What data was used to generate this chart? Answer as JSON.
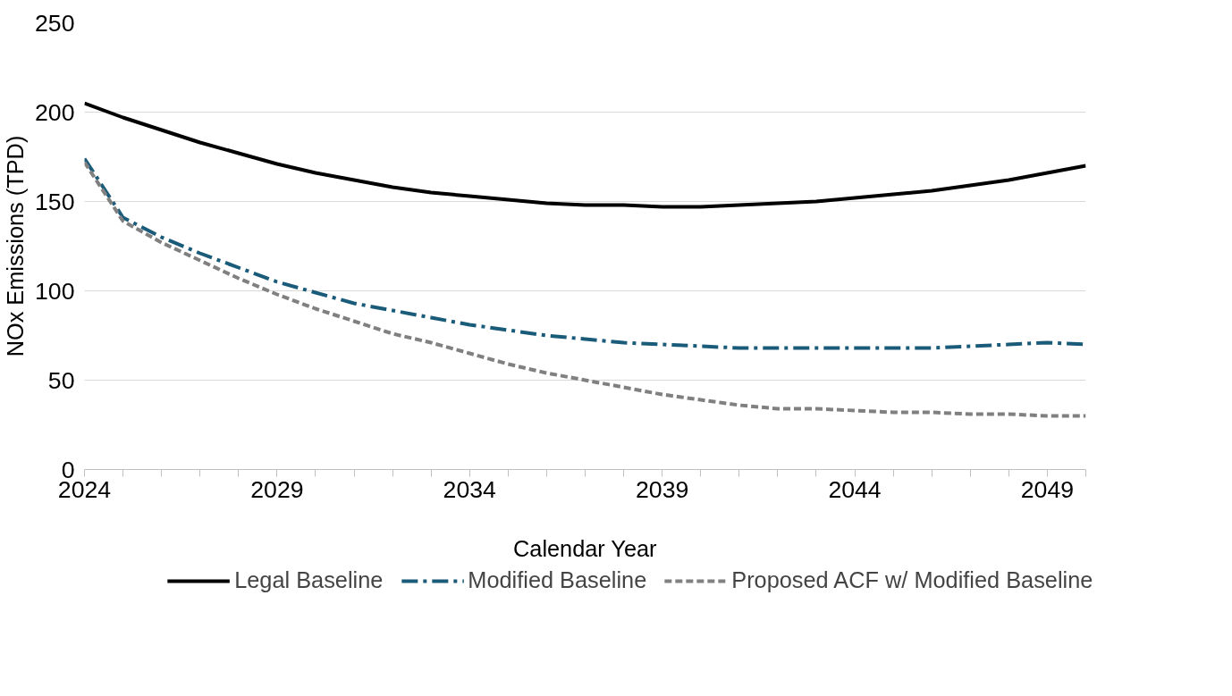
{
  "chart_data": {
    "type": "line",
    "xlabel": "Calendar Year",
    "ylabel": "NOx Emissions (TPD)",
    "x": [
      2024,
      2025,
      2026,
      2027,
      2028,
      2029,
      2030,
      2031,
      2032,
      2033,
      2034,
      2035,
      2036,
      2037,
      2038,
      2039,
      2040,
      2041,
      2042,
      2043,
      2044,
      2045,
      2046,
      2047,
      2048,
      2049,
      2050
    ],
    "series": [
      {
        "name": "Legal Baseline",
        "color": "#000000",
        "line_style": "solid",
        "values": [
          205,
          197,
          190,
          183,
          177,
          171,
          166,
          162,
          158,
          155,
          153,
          151,
          149,
          148,
          148,
          147,
          147,
          148,
          149,
          150,
          152,
          154,
          156,
          159,
          162,
          166,
          170
        ]
      },
      {
        "name": "Modified Baseline",
        "color": "#1a5b7a",
        "line_style": "dashdot",
        "values": [
          174,
          141,
          130,
          121,
          113,
          105,
          99,
          93,
          89,
          85,
          81,
          78,
          75,
          73,
          71,
          70,
          69,
          68,
          68,
          68,
          68,
          68,
          68,
          69,
          70,
          71,
          70
        ]
      },
      {
        "name": "Proposed ACF w/ Modified Baseline",
        "color": "#808080",
        "line_style": "dashed",
        "values": [
          172,
          139,
          127,
          117,
          107,
          98,
          90,
          83,
          76,
          71,
          65,
          59,
          54,
          50,
          46,
          42,
          39,
          36,
          34,
          34,
          33,
          32,
          32,
          31,
          31,
          30,
          30
        ]
      }
    ],
    "xlim": [
      2024,
      2050
    ],
    "xticks": [
      2024,
      {
        "value": 2025,
        "label": null
      },
      {
        "value": 2026,
        "label": null
      },
      {
        "value": 2027,
        "label": null
      },
      {
        "value": 2028,
        "label": null
      },
      2029,
      {
        "value": 2030,
        "label": null
      },
      {
        "value": 2031,
        "label": null
      },
      {
        "value": 2032,
        "label": null
      },
      {
        "value": 2033,
        "label": null
      },
      2034,
      {
        "value": 2035,
        "label": null
      },
      {
        "value": 2036,
        "label": null
      },
      {
        "value": 2037,
        "label": null
      },
      {
        "value": 2038,
        "label": null
      },
      2039,
      {
        "value": 2040,
        "label": null
      },
      {
        "value": 2041,
        "label": null
      },
      {
        "value": 2042,
        "label": null
      },
      {
        "value": 2043,
        "label": null
      },
      2044,
      {
        "value": 2045,
        "label": null
      },
      {
        "value": 2046,
        "label": null
      },
      {
        "value": 2047,
        "label": null
      },
      {
        "value": 2048,
        "label": null
      },
      2049,
      {
        "value": 2050,
        "label": null
      }
    ],
    "ylim": [
      0,
      250
    ],
    "yticks": [
      0,
      50,
      100,
      150,
      200,
      250
    ],
    "grid": "y",
    "legend": "bottom",
    "marker": "none"
  }
}
